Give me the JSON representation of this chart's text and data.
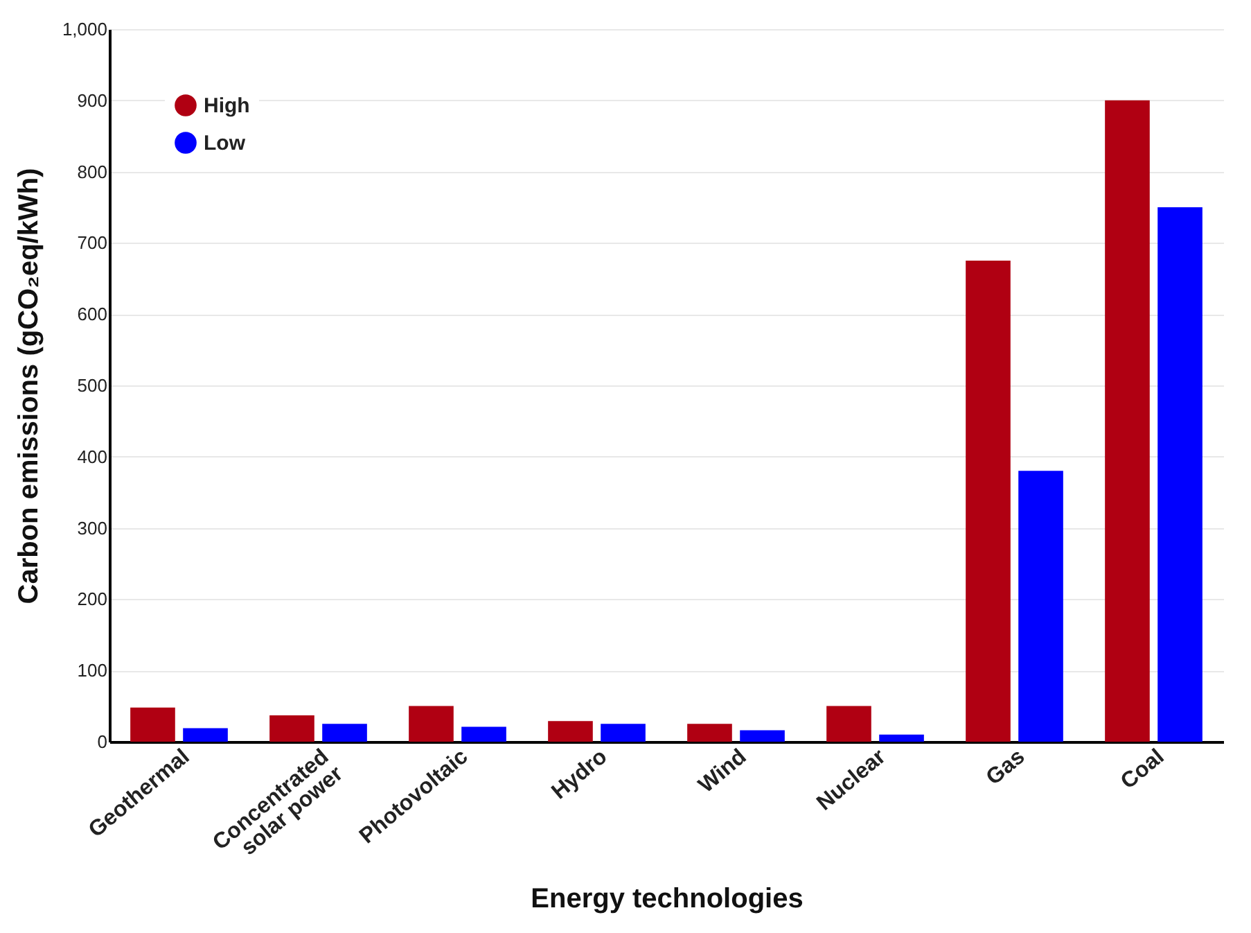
{
  "chart_data": {
    "type": "bar",
    "xlabel": "Energy technologies",
    "ylabel": "Carbon emissions (gCO₂eq/kWh)",
    "categories": [
      "Geothermal",
      "Concentrated solar power",
      "Photovoltaic",
      "Hydro",
      "Wind",
      "Nuclear",
      "Gas",
      "Coal"
    ],
    "series": [
      {
        "name": "High",
        "color": "#b00012",
        "values": [
          48,
          37,
          50,
          29,
          25,
          50,
          675,
          900
        ]
      },
      {
        "name": "Low",
        "color": "#0000ff",
        "values": [
          19,
          25,
          21,
          25,
          16,
          10,
          380,
          750
        ]
      }
    ],
    "ylim": [
      0,
      1000
    ],
    "yticks": [
      0,
      100,
      200,
      300,
      400,
      500,
      600,
      700,
      800,
      900,
      {
        "value": 1000,
        "label": "1,000"
      }
    ],
    "grid": "y",
    "legend": "top left"
  }
}
